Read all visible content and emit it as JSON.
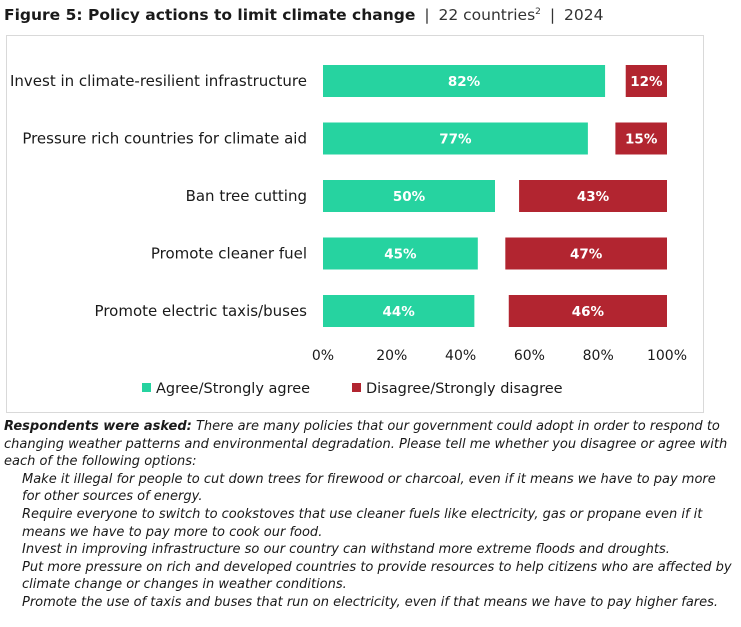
{
  "header": {
    "figure": "Figure 5: Policy actions to limit climate change",
    "countries": "22 countries",
    "footnote_mark": "2",
    "year": "2024",
    "separator": "|"
  },
  "colors": {
    "agree": "#26d3a0",
    "disagree": "#b22530",
    "border": "#d9d9d9"
  },
  "chart_data": {
    "type": "bar",
    "orientation": "horizontal",
    "title": "Policy actions to limit climate change",
    "categories": [
      "Invest in climate-resilient infrastructure",
      "Pressure rich countries for climate aid",
      "Ban tree cutting",
      "Promote cleaner fuel",
      "Promote electric taxis/buses"
    ],
    "series": [
      {
        "name": "Agree/Strongly agree",
        "values": [
          82,
          77,
          50,
          45,
          44
        ],
        "labels": [
          "82%",
          "77%",
          "50%",
          "45%",
          "44%"
        ]
      },
      {
        "name": "Disagree/Strongly disagree",
        "values": [
          12,
          15,
          43,
          47,
          46
        ],
        "labels": [
          "12%",
          "15%",
          "43%",
          "47%",
          "46%"
        ],
        "aligned": "right"
      }
    ],
    "xlim": [
      0,
      100
    ],
    "ticks": [
      "0%",
      "20%",
      "40%",
      "60%",
      "80%",
      "100%"
    ],
    "tick_values": [
      0,
      20,
      40,
      60,
      80,
      100
    ],
    "legend_position": "bottom",
    "grid": false
  },
  "notes": {
    "lead": "Respondents were asked:",
    "question": " There are many policies that our government could adopt in order to respond to changing weather patterns and environmental degradation. Please tell me whether you disagree or agree with each of the following options:",
    "options": [
      "Make it illegal for people to cut down trees for firewood or charcoal, even if it means we have to pay more for other sources of energy.",
      "Require everyone to switch to cookstoves that use cleaner fuels like electricity, gas or propane even if it means we have to pay more to cook our food.",
      "Invest in improving infrastructure so our country can withstand more extreme floods and droughts.",
      "Put more pressure on rich and developed countries to provide resources to help citizens who are affected by climate change or changes in weather conditions.",
      "Promote the use of taxis and buses that run on electricity, even if that means we have to pay higher fares."
    ]
  }
}
